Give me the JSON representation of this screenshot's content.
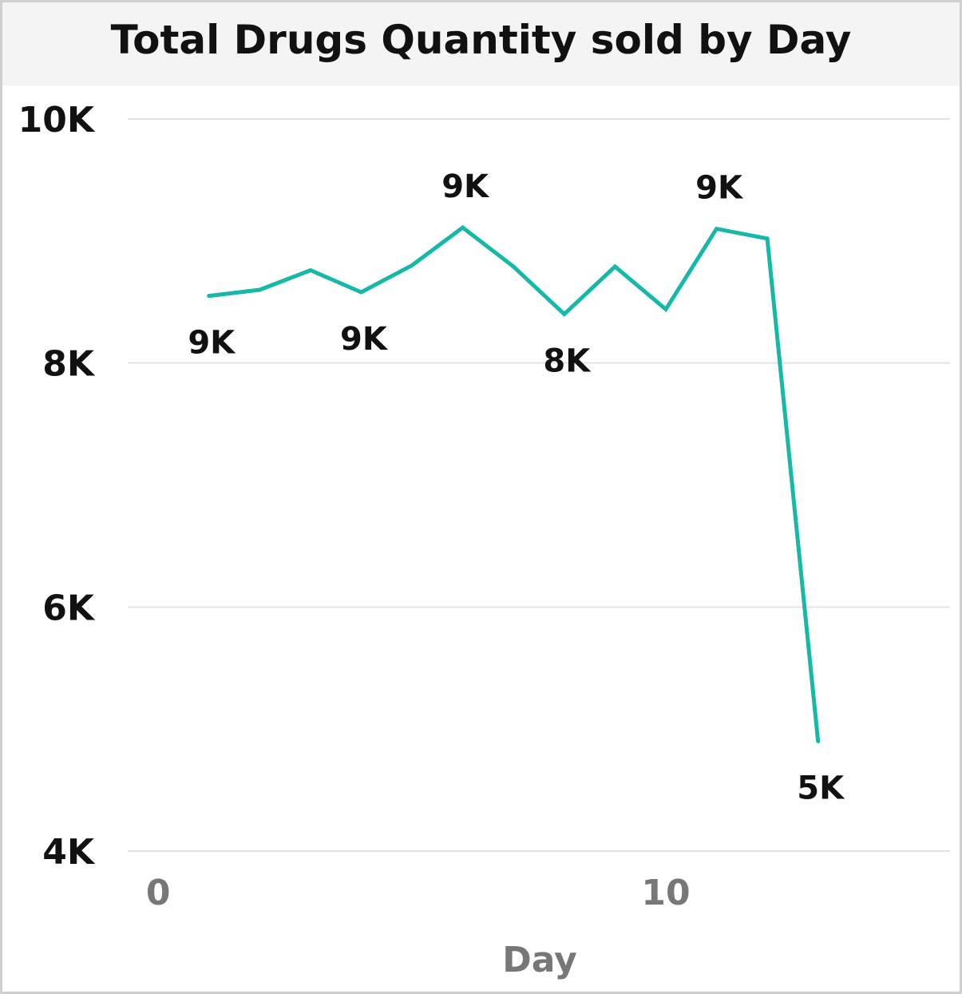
{
  "chart_data": {
    "type": "line",
    "title": "Total Drugs Quantity sold by Day",
    "xlabel": "Day",
    "ylabel": "",
    "xlim": [
      -0.6,
      15.6
    ],
    "ylim": [
      4000,
      10000
    ],
    "x_ticks": [
      0,
      10
    ],
    "x_tick_labels": [
      "0",
      "10"
    ],
    "y_ticks": [
      4000,
      6000,
      8000,
      10000
    ],
    "y_tick_labels": [
      "4K",
      "6K",
      "8K",
      "10K"
    ],
    "grid": true,
    "legend": "none",
    "series": [
      {
        "color": "#16b8a8",
        "x": [
          1,
          2,
          3,
          4,
          5,
          6,
          7,
          8,
          9,
          10,
          11,
          12,
          13
        ],
        "y": [
          8550,
          8600,
          8760,
          8580,
          8800,
          9110,
          8790,
          8400,
          8790,
          8440,
          9100,
          9020,
          4900
        ]
      }
    ],
    "data_labels": [
      {
        "index": 0,
        "text": "9K",
        "position": "below"
      },
      {
        "index": 3,
        "text": "9K",
        "position": "below"
      },
      {
        "index": 5,
        "text": "9K",
        "position": "above"
      },
      {
        "index": 7,
        "text": "8K",
        "position": "below"
      },
      {
        "index": 10,
        "text": "9K",
        "position": "above"
      },
      {
        "index": 12,
        "text": "5K",
        "position": "below"
      }
    ]
  }
}
